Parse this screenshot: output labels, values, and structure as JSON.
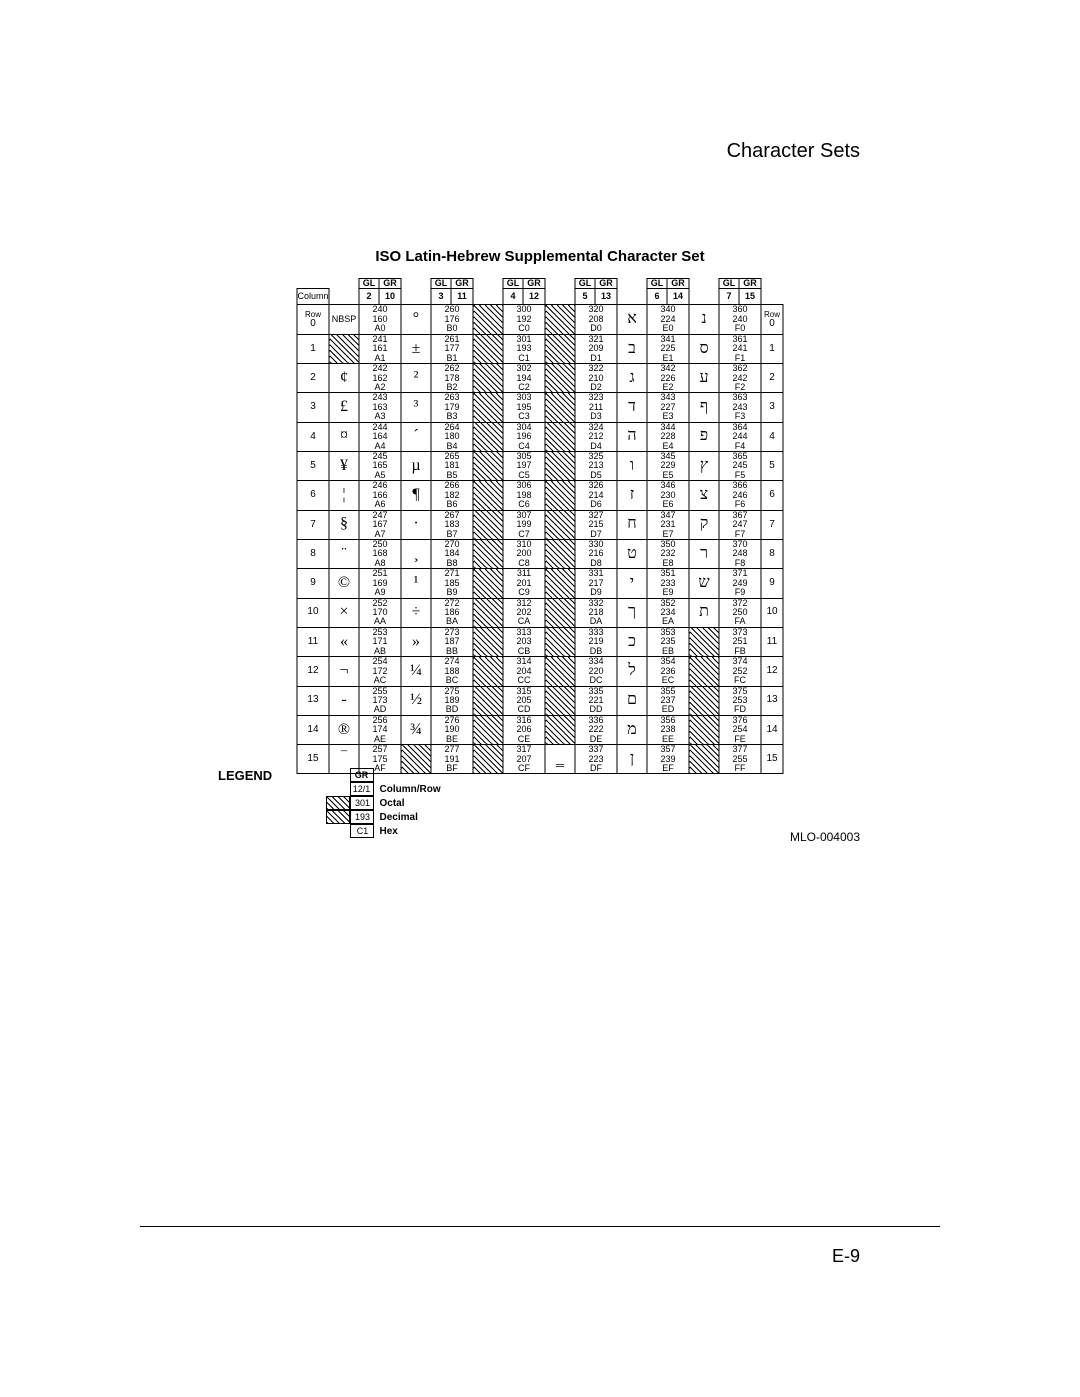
{
  "page": {
    "header_title": "Character Sets",
    "chart_title": "ISO Latin-Hebrew Supplemental Character Set",
    "figure_id": "MLO-004003",
    "page_number": "E-9"
  },
  "legend": {
    "title": "LEGEND",
    "gr_label": "GR",
    "colrow_sample": "12/1",
    "octal_sample": "301",
    "decimal_sample": "193",
    "hex_sample": "C1",
    "colrow_text": "Column/Row",
    "octal_text": "Octal",
    "decimal_text": "Decimal",
    "hex_text": "Hex"
  },
  "headers": {
    "GL": "GL",
    "GR": "GR",
    "Column": "Column",
    "Row": "Row"
  },
  "column_groups": [
    {
      "gl": "2",
      "gr": "10"
    },
    {
      "gl": "3",
      "gr": "11"
    },
    {
      "gl": "4",
      "gr": "12"
    },
    {
      "gl": "5",
      "gr": "13"
    },
    {
      "gl": "6",
      "gr": "14"
    },
    {
      "gl": "7",
      "gr": "15"
    }
  ],
  "rows": [
    {
      "r": "0",
      "cells": [
        {
          "glyph": "NBSP",
          "small": true,
          "oct": "240",
          "dec": "160",
          "hex": "A0"
        },
        {
          "glyph": "°",
          "oct": "260",
          "dec": "176",
          "hex": "B0"
        },
        {
          "hatch": true,
          "oct": "300",
          "dec": "192",
          "hex": "C0"
        },
        {
          "hatch": true,
          "oct": "320",
          "dec": "208",
          "hex": "D0"
        },
        {
          "glyph": "א",
          "oct": "340",
          "dec": "224",
          "hex": "E0"
        },
        {
          "glyph": "נ",
          "oct": "360",
          "dec": "240",
          "hex": "F0"
        }
      ]
    },
    {
      "r": "1",
      "cells": [
        {
          "hatch": true,
          "oct": "241",
          "dec": "161",
          "hex": "A1"
        },
        {
          "glyph": "±",
          "oct": "261",
          "dec": "177",
          "hex": "B1"
        },
        {
          "hatch": true,
          "oct": "301",
          "dec": "193",
          "hex": "C1"
        },
        {
          "hatch": true,
          "oct": "321",
          "dec": "209",
          "hex": "D1"
        },
        {
          "glyph": "ב",
          "oct": "341",
          "dec": "225",
          "hex": "E1"
        },
        {
          "glyph": "ס",
          "oct": "361",
          "dec": "241",
          "hex": "F1"
        }
      ]
    },
    {
      "r": "2",
      "cells": [
        {
          "glyph": "¢",
          "oct": "242",
          "dec": "162",
          "hex": "A2"
        },
        {
          "glyph": "²",
          "oct": "262",
          "dec": "178",
          "hex": "B2"
        },
        {
          "hatch": true,
          "oct": "302",
          "dec": "194",
          "hex": "C2"
        },
        {
          "hatch": true,
          "oct": "322",
          "dec": "210",
          "hex": "D2"
        },
        {
          "glyph": "ג",
          "oct": "342",
          "dec": "226",
          "hex": "E2"
        },
        {
          "glyph": "ע",
          "oct": "362",
          "dec": "242",
          "hex": "F2"
        }
      ]
    },
    {
      "r": "3",
      "cells": [
        {
          "glyph": "£",
          "oct": "243",
          "dec": "163",
          "hex": "A3"
        },
        {
          "glyph": "³",
          "oct": "263",
          "dec": "179",
          "hex": "B3"
        },
        {
          "hatch": true,
          "oct": "303",
          "dec": "195",
          "hex": "C3"
        },
        {
          "hatch": true,
          "oct": "323",
          "dec": "211",
          "hex": "D3"
        },
        {
          "glyph": "ד",
          "oct": "343",
          "dec": "227",
          "hex": "E3"
        },
        {
          "glyph": "ף",
          "oct": "363",
          "dec": "243",
          "hex": "F3"
        }
      ]
    },
    {
      "r": "4",
      "cells": [
        {
          "glyph": "¤",
          "oct": "244",
          "dec": "164",
          "hex": "A4"
        },
        {
          "glyph": "´",
          "oct": "264",
          "dec": "180",
          "hex": "B4"
        },
        {
          "hatch": true,
          "oct": "304",
          "dec": "196",
          "hex": "C4"
        },
        {
          "hatch": true,
          "oct": "324",
          "dec": "212",
          "hex": "D4"
        },
        {
          "glyph": "ה",
          "oct": "344",
          "dec": "228",
          "hex": "E4"
        },
        {
          "glyph": "פ",
          "oct": "364",
          "dec": "244",
          "hex": "F4"
        }
      ]
    },
    {
      "r": "5",
      "cells": [
        {
          "glyph": "¥",
          "oct": "245",
          "dec": "165",
          "hex": "A5"
        },
        {
          "glyph": "µ",
          "oct": "265",
          "dec": "181",
          "hex": "B5"
        },
        {
          "hatch": true,
          "oct": "305",
          "dec": "197",
          "hex": "C5"
        },
        {
          "hatch": true,
          "oct": "325",
          "dec": "213",
          "hex": "D5"
        },
        {
          "glyph": "ו",
          "oct": "345",
          "dec": "229",
          "hex": "E5"
        },
        {
          "glyph": "ץ",
          "oct": "365",
          "dec": "245",
          "hex": "F5"
        }
      ]
    },
    {
      "r": "6",
      "cells": [
        {
          "glyph": "¦",
          "oct": "246",
          "dec": "166",
          "hex": "A6"
        },
        {
          "glyph": "¶",
          "oct": "266",
          "dec": "182",
          "hex": "B6"
        },
        {
          "hatch": true,
          "oct": "306",
          "dec": "198",
          "hex": "C6"
        },
        {
          "hatch": true,
          "oct": "326",
          "dec": "214",
          "hex": "D6"
        },
        {
          "glyph": "ז",
          "oct": "346",
          "dec": "230",
          "hex": "E6"
        },
        {
          "glyph": "צ",
          "oct": "366",
          "dec": "246",
          "hex": "F6"
        }
      ]
    },
    {
      "r": "7",
      "cells": [
        {
          "glyph": "§",
          "oct": "247",
          "dec": "167",
          "hex": "A7"
        },
        {
          "glyph": "·",
          "oct": "267",
          "dec": "183",
          "hex": "B7"
        },
        {
          "hatch": true,
          "oct": "307",
          "dec": "199",
          "hex": "C7"
        },
        {
          "hatch": true,
          "oct": "327",
          "dec": "215",
          "hex": "D7"
        },
        {
          "glyph": "ח",
          "oct": "347",
          "dec": "231",
          "hex": "E7"
        },
        {
          "glyph": "ק",
          "oct": "367",
          "dec": "247",
          "hex": "F7"
        }
      ]
    },
    {
      "r": "8",
      "cells": [
        {
          "glyph": "¨",
          "oct": "250",
          "dec": "168",
          "hex": "A8"
        },
        {
          "glyph": "¸",
          "oct": "270",
          "dec": "184",
          "hex": "B8"
        },
        {
          "hatch": true,
          "oct": "310",
          "dec": "200",
          "hex": "C8"
        },
        {
          "hatch": true,
          "oct": "330",
          "dec": "216",
          "hex": "D8"
        },
        {
          "glyph": "ט",
          "oct": "350",
          "dec": "232",
          "hex": "E8"
        },
        {
          "glyph": "ר",
          "oct": "370",
          "dec": "248",
          "hex": "F8"
        }
      ]
    },
    {
      "r": "9",
      "cells": [
        {
          "glyph": "©",
          "oct": "251",
          "dec": "169",
          "hex": "A9"
        },
        {
          "glyph": "¹",
          "oct": "271",
          "dec": "185",
          "hex": "B9"
        },
        {
          "hatch": true,
          "oct": "311",
          "dec": "201",
          "hex": "C9"
        },
        {
          "hatch": true,
          "oct": "331",
          "dec": "217",
          "hex": "D9"
        },
        {
          "glyph": "י",
          "oct": "351",
          "dec": "233",
          "hex": "E9"
        },
        {
          "glyph": "ש",
          "oct": "371",
          "dec": "249",
          "hex": "F9"
        }
      ]
    },
    {
      "r": "10",
      "cells": [
        {
          "glyph": "×",
          "oct": "252",
          "dec": "170",
          "hex": "AA"
        },
        {
          "glyph": "÷",
          "oct": "272",
          "dec": "186",
          "hex": "BA"
        },
        {
          "hatch": true,
          "oct": "312",
          "dec": "202",
          "hex": "CA"
        },
        {
          "hatch": true,
          "oct": "332",
          "dec": "218",
          "hex": "DA"
        },
        {
          "glyph": "ך",
          "oct": "352",
          "dec": "234",
          "hex": "EA"
        },
        {
          "glyph": "ת",
          "oct": "372",
          "dec": "250",
          "hex": "FA"
        }
      ]
    },
    {
      "r": "11",
      "cells": [
        {
          "glyph": "«",
          "oct": "253",
          "dec": "171",
          "hex": "AB"
        },
        {
          "glyph": "»",
          "oct": "273",
          "dec": "187",
          "hex": "BB"
        },
        {
          "hatch": true,
          "oct": "313",
          "dec": "203",
          "hex": "CB"
        },
        {
          "hatch": true,
          "oct": "333",
          "dec": "219",
          "hex": "DB"
        },
        {
          "glyph": "כ",
          "oct": "353",
          "dec": "235",
          "hex": "EB"
        },
        {
          "hatch": true,
          "oct": "373",
          "dec": "251",
          "hex": "FB"
        }
      ]
    },
    {
      "r": "12",
      "cells": [
        {
          "glyph": "¬",
          "oct": "254",
          "dec": "172",
          "hex": "AC"
        },
        {
          "glyph": "¼",
          "oct": "274",
          "dec": "188",
          "hex": "BC"
        },
        {
          "hatch": true,
          "oct": "314",
          "dec": "204",
          "hex": "CC"
        },
        {
          "hatch": true,
          "oct": "334",
          "dec": "220",
          "hex": "DC"
        },
        {
          "glyph": "ל",
          "oct": "354",
          "dec": "236",
          "hex": "EC"
        },
        {
          "hatch": true,
          "oct": "374",
          "dec": "252",
          "hex": "FC"
        }
      ]
    },
    {
      "r": "13",
      "cells": [
        {
          "glyph": "-",
          "oct": "255",
          "dec": "173",
          "hex": "AD"
        },
        {
          "glyph": "½",
          "oct": "275",
          "dec": "189",
          "hex": "BD"
        },
        {
          "hatch": true,
          "oct": "315",
          "dec": "205",
          "hex": "CD"
        },
        {
          "hatch": true,
          "oct": "335",
          "dec": "221",
          "hex": "DD"
        },
        {
          "glyph": "ם",
          "oct": "355",
          "dec": "237",
          "hex": "ED"
        },
        {
          "hatch": true,
          "oct": "375",
          "dec": "253",
          "hex": "FD"
        }
      ]
    },
    {
      "r": "14",
      "cells": [
        {
          "glyph": "®",
          "oct": "256",
          "dec": "174",
          "hex": "AE"
        },
        {
          "glyph": "¾",
          "oct": "276",
          "dec": "190",
          "hex": "BE"
        },
        {
          "hatch": true,
          "oct": "316",
          "dec": "206",
          "hex": "CE"
        },
        {
          "hatch": true,
          "oct": "336",
          "dec": "222",
          "hex": "DE"
        },
        {
          "glyph": "מ",
          "oct": "356",
          "dec": "238",
          "hex": "EE"
        },
        {
          "hatch": true,
          "oct": "376",
          "dec": "254",
          "hex": "FE"
        }
      ]
    },
    {
      "r": "15",
      "cells": [
        {
          "glyph": "‾",
          "oct": "257",
          "dec": "175",
          "hex": "AF"
        },
        {
          "hatch": true,
          "oct": "277",
          "dec": "191",
          "hex": "BF"
        },
        {
          "hatch": true,
          "oct": "317",
          "dec": "207",
          "hex": "CF"
        },
        {
          "glyph": "‗",
          "oct": "337",
          "dec": "223",
          "hex": "DF"
        },
        {
          "glyph": "ן",
          "oct": "357",
          "dec": "239",
          "hex": "EF"
        },
        {
          "hatch": true,
          "oct": "377",
          "dec": "255",
          "hex": "FF"
        }
      ]
    }
  ]
}
